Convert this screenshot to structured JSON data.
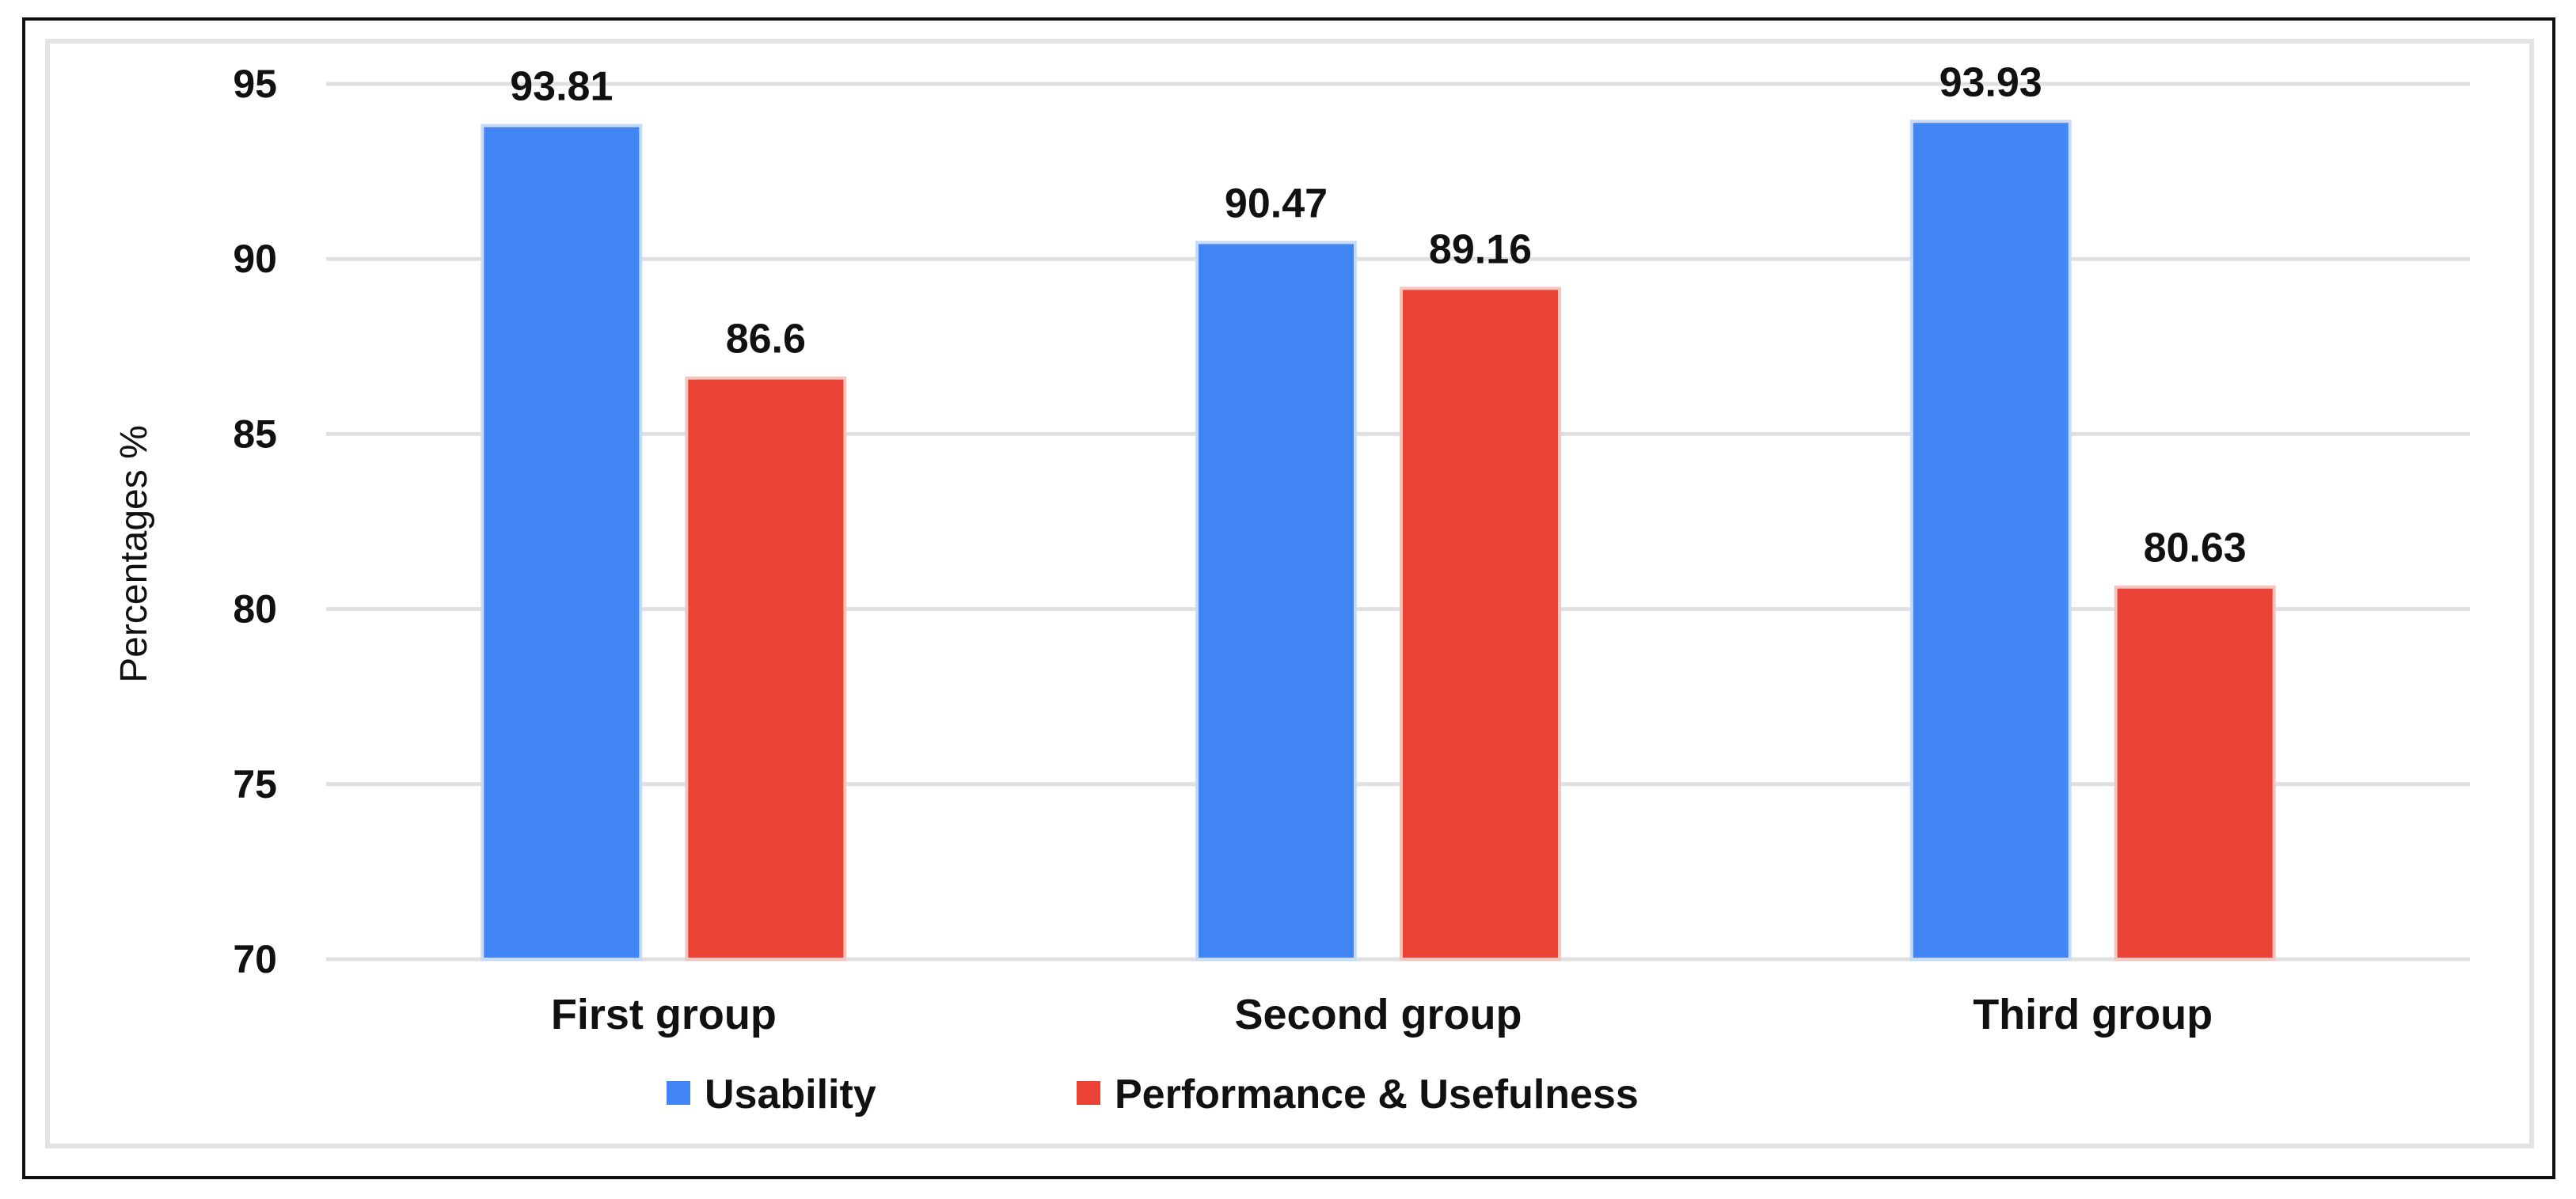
{
  "chart_data": {
    "type": "bar",
    "categories": [
      "First group",
      "Second group",
      "Third group"
    ],
    "series": [
      {
        "name": "Usability",
        "values": [
          93.81,
          90.47,
          93.93
        ],
        "color": "#4285f4"
      },
      {
        "name": "Performance & Usefulness",
        "values": [
          86.6,
          89.16,
          80.63
        ],
        "color": "#ea4335"
      }
    ],
    "data_labels": [
      [
        "93.81",
        "90.47",
        "93.93"
      ],
      [
        "86.6",
        "89.16",
        "80.63"
      ]
    ],
    "ylabel": "Percentages %",
    "xlabel": "",
    "ylim": [
      70,
      95
    ],
    "yticks": [
      "95",
      "90",
      "85",
      "80",
      "75",
      "70"
    ],
    "grid": true,
    "legend_position": "bottom"
  }
}
